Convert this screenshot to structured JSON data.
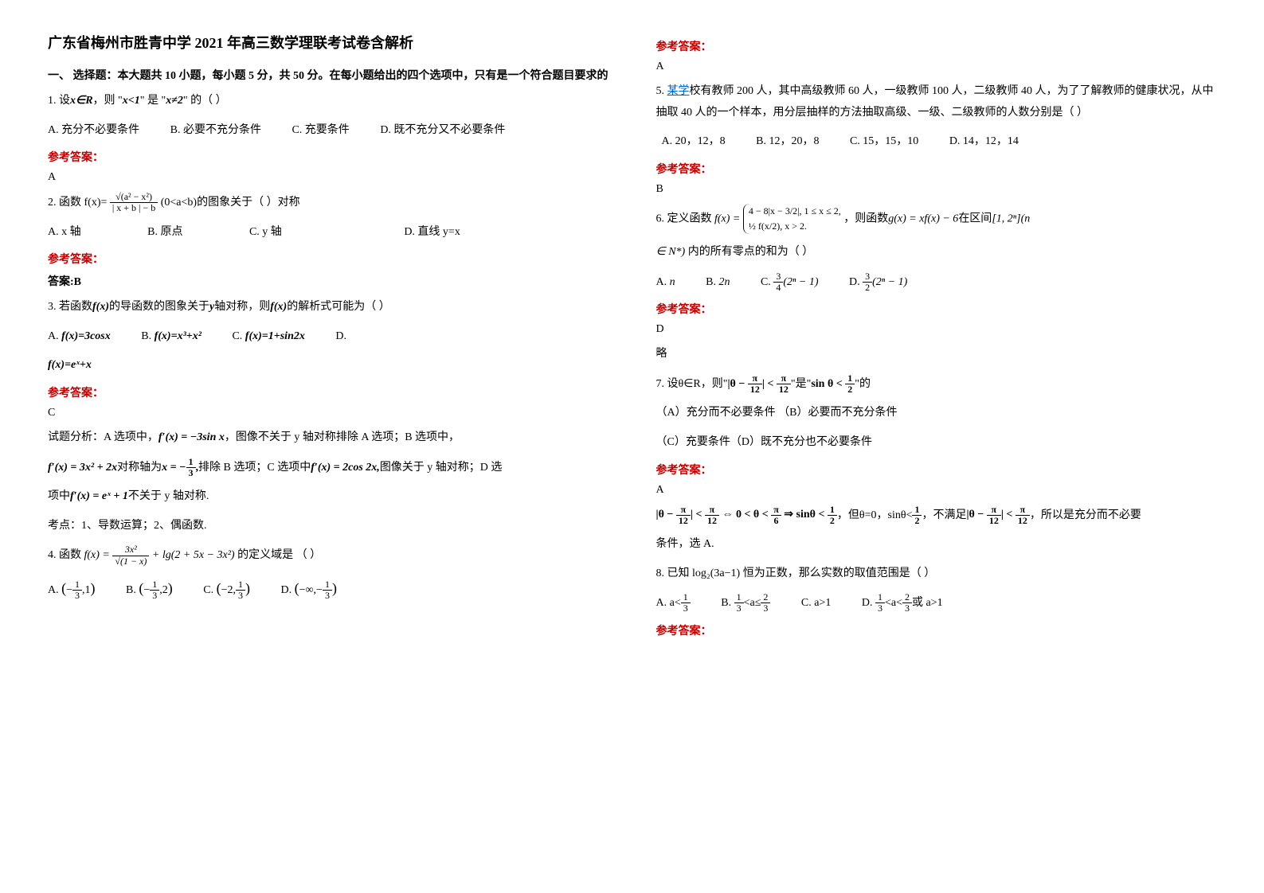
{
  "title": "广东省梅州市胜青中学 2021 年高三数学理联考试卷含解析",
  "section1": "一、 选择题：本大题共 10 小题，每小题 5 分，共 50 分。在每小题给出的四个选项中，只有是一个符合题目要求的",
  "q1": {
    "stem_a": "1. 设",
    "math1": "x∈R",
    "stem_b": "，则 \"",
    "math2": "x<1",
    "stem_c": "\" 是 \"",
    "math3": "x≠2",
    "stem_d": "\" 的（        ）",
    "A": "A. 充分不必要条件",
    "B": "B. 必要不充分条件",
    "C": "C. 充要条件",
    "D": "D. 既不充分又不必要条件",
    "ans": "A"
  },
  "q2": {
    "pre": "2.      函数 f(x)=",
    "num": "√(a² − x²)",
    "den": "| x + b | − b",
    "post": " (0<a<b)的图象关于（      ）对称",
    "A": "A. x 轴",
    "B": "B. 原点",
    "C": "C. y 轴",
    "D": "D. 直线 y=x",
    "ansLabel": "答案:B"
  },
  "q3": {
    "a": "3. 若函数",
    "fx": "f(x)",
    "b": "的导函数的图象关于",
    "y": "y",
    "c": "轴对称，则",
    "d": "的解析式可能为（      ）",
    "A": "f(x)=3cosx",
    "B": "f(x)=x³+x²",
    "C": "f(x)=1+sin2x",
    "Dlab": "D.",
    "D": "f(x)=eˣ+x",
    "ans": "C",
    "exp1a": "试题分析：A 选项中，",
    "exp1b": "f′(x) = −3sin x",
    "exp1c": "，图像不关于 y 轴对称排除 A 选项；B 选项中，",
    "exp2a": "f′(x) = 3x² + 2x",
    "exp2b": "对称轴为",
    "exp2c": "x = −",
    "exp2num": "1",
    "exp2den": "3",
    "exp2d": "排除 B 选项；C 选项中",
    "exp2e": "f′(x) = 2cos 2x,",
    "exp2f": "图像关于 y 轴对称；D 选",
    "exp3a": "项中",
    "exp3b": "f′(x) = eˣ + 1",
    "exp3c": "不关于 y 轴对称.",
    "exp4": "考点：1、导数运算；2、偶函数."
  },
  "q4": {
    "pre": "4. 函数",
    "fx_a": "f(x) = ",
    "num": "3x²",
    "den": "√(1 − x)",
    "fx_b": " + lg(2 + 5x − 3x²)",
    "post": "    的定义域是      （   ）",
    "A_l": "(−",
    "A_n1": "1",
    "A_d1": "3",
    "A_r": ",1)",
    "B_l": "(−",
    "B_n1": "1",
    "B_d1": "3",
    "B_r": ",2)",
    "C_l": "(−2,",
    "C_n1": "1",
    "C_d1": "3",
    "C_r": ")",
    "D_l": "(−∞,−",
    "D_n1": "1",
    "D_d1": "3",
    "D_r": ")"
  },
  "ref": "参考答案：",
  "q4ans": "A",
  "q5": {
    "a": "5. ",
    "link": "某学",
    "b": "校有教师 200 人，其中高级教师 60 人，一级教师 100 人，二级教师 40 人，为了了解教师的健康状况，从中抽取 40 人的一个样本，用分层抽样的方法抽取高级、一级、二级教师的人数分别是（  ）",
    "A": "A. 20，12，8",
    "B": "B. 12，20，8",
    "C": "C. 15，15，10",
    "D": "D. 14，12，14",
    "ans": "B"
  },
  "q6": {
    "a": "6. 定义函数",
    "case1": "4 − 8|x − 3/2|, 1 ≤ x ≤ 2,",
    "case2": "½ f(x/2), x > 2.",
    "b": "，则函数",
    "gx": "g(x) = xf(x) − 6",
    "c": "在区间",
    "int": "[1, 2ⁿ](n",
    "d": "∈ N*)",
    "e": " 内的所有零点的和为（        ）",
    "Alab": "A. ",
    "A": "n",
    "Blab": "B. ",
    "B": "2n",
    "Clab": "C. ",
    "Cn": "3",
    "Cd": "4",
    "Cr": "(2ⁿ − 1)",
    "Dlab": "D. ",
    "Dn": "3",
    "Dd": "2",
    "Dr": "(2ⁿ − 1)",
    "ans": "D",
    "exp": "略"
  },
  "q7": {
    "a": "7. 设θ∈R，则\"",
    "m1": "|θ − ",
    "n1": "π",
    "d1": "12",
    "m2": "| < ",
    "n2": "π",
    "d2": "12",
    "b": "\"是\"",
    "m3": "sin θ < ",
    "n3": "1",
    "d3": "2",
    "c": "\"的",
    "optA": "（A）充分而不必要条件   （B）必要而不充分条件",
    "optC": "（C）充要条件（D）既不充分也不必要条件",
    "ans": "A",
    "e1": "|θ − ",
    "en1": "π",
    "ed1": "12",
    "e2": "| < ",
    "en2": "π",
    "ed2": "12",
    "e3": " ⇔ 0 < θ < ",
    "en3": "π",
    "ed3": "6",
    "e4": " ⇒ sinθ < ",
    "en4": "1",
    "ed4": "2",
    "e5": "，但θ=0，sinθ<",
    "en5": "1",
    "ed5": "2",
    "e6": "，不满足",
    "e7": "|θ − ",
    "en6": "π",
    "ed6": "12",
    "e8": "| < ",
    "en7": "π",
    "ed7": "12",
    "e9": "，所以是充分而不必要",
    "e10": "条件，选 A."
  },
  "q8": {
    "stem": "8. 已知 log₂(3a−1) 恒为正数，那么实数的取值范围是（    ）",
    "A_a": "A. a<",
    "A_n": "1",
    "A_d": "3",
    "B_a": "B. ",
    "B_n1": "1",
    "B_d1": "3",
    "B_b": "<a≤",
    "B_n2": "2",
    "B_d2": "3",
    "C": "C. a>1",
    "D_a": "D. ",
    "D_n1": "1",
    "D_d1": "3",
    "D_b": "<a<",
    "D_n2": "2",
    "D_d2": "3",
    "D_c": "或 a>1"
  }
}
